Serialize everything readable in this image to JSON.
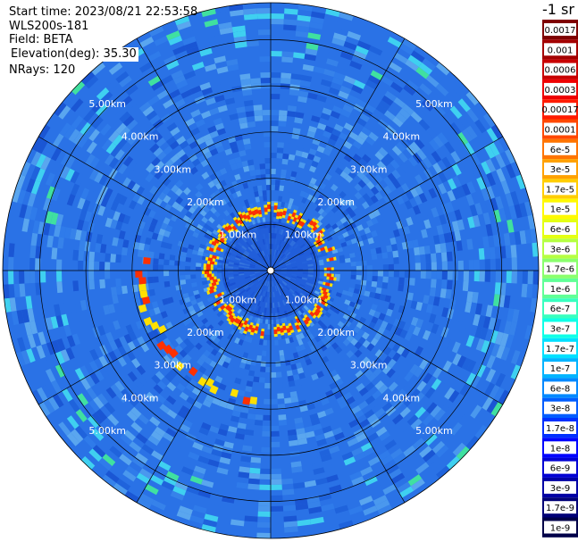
{
  "info": {
    "start_time": "Start time: 2023/08/21 22:53:58",
    "instrument": "WLS200s-181",
    "field": "Field: BETA",
    "elevation": "Elevation(deg): 35.30",
    "nrays": "NRays: 120"
  },
  "chart_data": {
    "type": "heatmap",
    "projection": "polar-ppi",
    "range_unit": "km",
    "range_max_km": 5.8,
    "range_rings_km": [
      1,
      2,
      3,
      4,
      5
    ],
    "range_labels": [
      "1.00km",
      "2.00km",
      "3.00km",
      "4.00km",
      "5.00km"
    ],
    "radial_lines_deg": [
      0,
      30,
      60,
      90,
      120,
      150
    ],
    "nrays": 120,
    "aerosol_ring_km": 1.3,
    "colorbar": {
      "unit_label": "-1 sr",
      "labels": [
        "0.0017",
        "0.001",
        "0.0006",
        "0.0003",
        "0.00017",
        "0.0001",
        "6e-5",
        "3e-5",
        "1.7e-5",
        "1e-5",
        "6e-6",
        "3e-6",
        "1.7e-6",
        "1e-6",
        "6e-7",
        "3e-7",
        "1.7e-7",
        "1e-7",
        "6e-8",
        "3e-8",
        "1.7e-8",
        "1e-8",
        "6e-9",
        "3e-9",
        "1.7e-9",
        "1e-9"
      ],
      "colors": [
        "#7f0000",
        "#a30000",
        "#c80000",
        "#ee0000",
        "#ff1b00",
        "#ff4800",
        "#ff7400",
        "#ffa100",
        "#ffcd00",
        "#fff900",
        "#e4ff13",
        "#b5ff42",
        "#8aff6d",
        "#60ff97",
        "#38ffbf",
        "#0fffe7",
        "#00e0ff",
        "#00b4ff",
        "#0089ff",
        "#005dff",
        "#0030ff",
        "#0004ff",
        "#0000d4",
        "#0000a5",
        "#000077",
        "#000048"
      ]
    }
  }
}
